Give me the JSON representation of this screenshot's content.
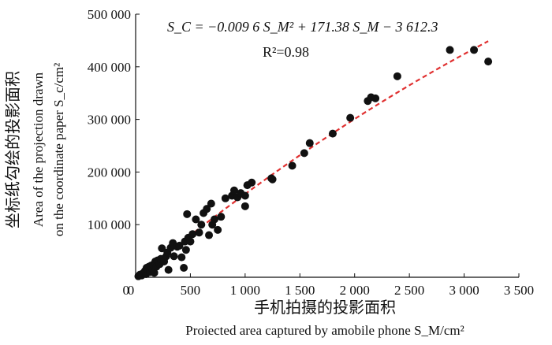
{
  "chart_data": {
    "type": "scatter",
    "title": "",
    "xlabel": "手机拍摄的投影面积",
    "xlabel_en": "Proiected area captured by amobile phone S_M/cm²",
    "ylabel": "坐标纸勾绘的投影面积",
    "ylabel_en_line1": "Area of the projection drawn",
    "ylabel_en_line2": "on the coordinate paper S_c/cm²",
    "xlim": [
      0,
      3500
    ],
    "ylim": [
      0,
      500000
    ],
    "xticks": [
      0,
      500,
      1000,
      1500,
      2000,
      2500,
      3000,
      3500
    ],
    "xtick_labels": [
      "0",
      "500",
      "1 000",
      "1 500",
      "2 000",
      "2 500",
      "3 000",
      "3 500"
    ],
    "yticks": [
      0,
      100000,
      200000,
      300000,
      400000,
      500000
    ],
    "ytick_labels": [
      "0",
      "100 000",
      "200 000",
      "300 000",
      "400 000",
      "500 000"
    ],
    "grid": false,
    "equation": "S_C = −0.009 6 S_M² + 171.38 S_M − 3 612.3",
    "r_squared": "R²=0.98",
    "fit": {
      "a": -0.0096,
      "b": 171.38,
      "c": -3612.3,
      "x_range": [
        30,
        3220
      ],
      "color": "#e03030",
      "style": "dashed"
    },
    "point_color": "#111111",
    "points": [
      [
        25,
        2000
      ],
      [
        40,
        5000
      ],
      [
        55,
        3500
      ],
      [
        70,
        8000
      ],
      [
        85,
        12000
      ],
      [
        95,
        6000
      ],
      [
        100,
        18000
      ],
      [
        110,
        14000
      ],
      [
        120,
        20000
      ],
      [
        130,
        10000
      ],
      [
        140,
        22000
      ],
      [
        150,
        16000
      ],
      [
        160,
        24000
      ],
      [
        170,
        8500
      ],
      [
        180,
        30000
      ],
      [
        190,
        20000
      ],
      [
        200,
        32000
      ],
      [
        210,
        27000
      ],
      [
        220,
        25000
      ],
      [
        230,
        35000
      ],
      [
        240,
        55000
      ],
      [
        260,
        30000
      ],
      [
        280,
        40000
      ],
      [
        290,
        47000
      ],
      [
        300,
        14000
      ],
      [
        320,
        56000
      ],
      [
        340,
        65000
      ],
      [
        350,
        40000
      ],
      [
        380,
        58000
      ],
      [
        400,
        60000
      ],
      [
        420,
        38000
      ],
      [
        440,
        18000
      ],
      [
        450,
        68000
      ],
      [
        460,
        52000
      ],
      [
        470,
        120000
      ],
      [
        480,
        75000
      ],
      [
        500,
        68000
      ],
      [
        520,
        82000
      ],
      [
        550,
        110000
      ],
      [
        580,
        85000
      ],
      [
        600,
        100000
      ],
      [
        620,
        122000
      ],
      [
        650,
        130000
      ],
      [
        670,
        80000
      ],
      [
        690,
        140000
      ],
      [
        700,
        100000
      ],
      [
        720,
        110000
      ],
      [
        750,
        90000
      ],
      [
        780,
        115000
      ],
      [
        820,
        150000
      ],
      [
        880,
        155000
      ],
      [
        900,
        165000
      ],
      [
        930,
        152000
      ],
      [
        960,
        160000
      ],
      [
        1000,
        135000
      ],
      [
        1000,
        155000
      ],
      [
        1020,
        175000
      ],
      [
        1060,
        180000
      ],
      [
        1240,
        188000
      ],
      [
        1250,
        186000
      ],
      [
        1430,
        212000
      ],
      [
        1540,
        236000
      ],
      [
        1590,
        255000
      ],
      [
        1800,
        273000
      ],
      [
        1960,
        303000
      ],
      [
        2120,
        335000
      ],
      [
        2150,
        342000
      ],
      [
        2190,
        340000
      ],
      [
        2390,
        382000
      ],
      [
        2870,
        432000
      ],
      [
        3090,
        432000
      ],
      [
        3220,
        410000
      ]
    ]
  }
}
